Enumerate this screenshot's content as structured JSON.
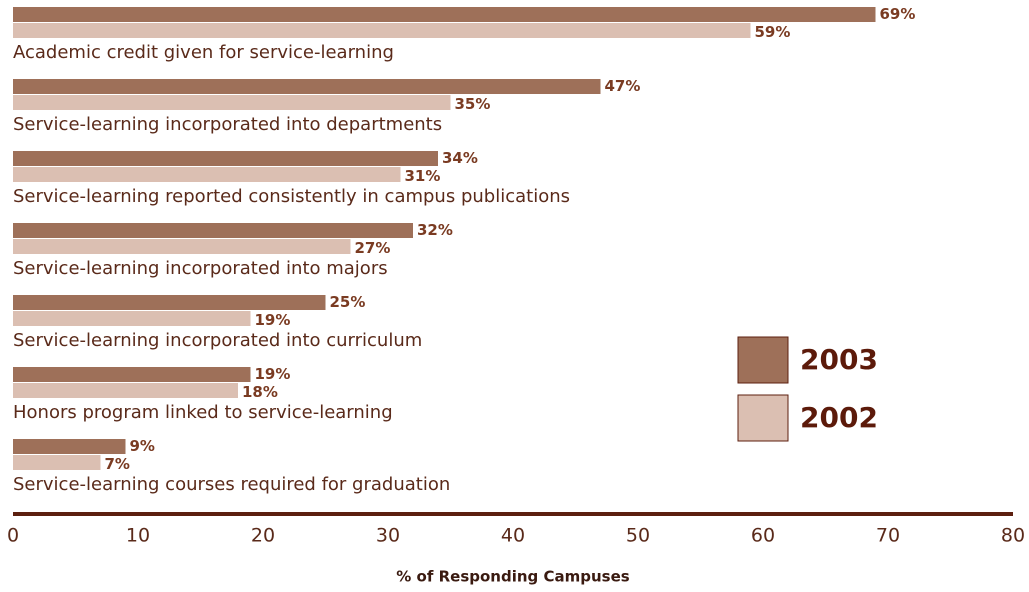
{
  "chart_data": {
    "type": "bar",
    "orientation": "horizontal",
    "categories": [
      "Academic credit given for service-learning",
      "Service-learning incorporated into departments",
      "Service-learning reported consistently in campus publications",
      "Service-learning incorporated into majors",
      "Service-learning incorporated into curriculum",
      "Honors program linked to service-learning",
      "Service-learning courses required for graduation"
    ],
    "series": [
      {
        "name": "2003",
        "color": "#9e7059",
        "values": [
          69,
          47,
          34,
          32,
          25,
          19,
          9
        ],
        "value_labels": [
          "69%",
          "47%",
          "34%",
          "32%",
          "25%",
          "19%",
          "9%"
        ]
      },
      {
        "name": "2002",
        "color": "#dbbfb2",
        "values": [
          59,
          35,
          31,
          27,
          19,
          18,
          7
        ],
        "value_labels": [
          "59%",
          "35%",
          "31%",
          "27%",
          "19%",
          "18%",
          "7%"
        ]
      }
    ],
    "xlabel": "% of Responding Campuses",
    "xlim": [
      0,
      80
    ],
    "xticks": [
      0,
      10,
      20,
      30,
      40,
      50,
      60,
      70,
      80
    ],
    "legend": "right"
  }
}
